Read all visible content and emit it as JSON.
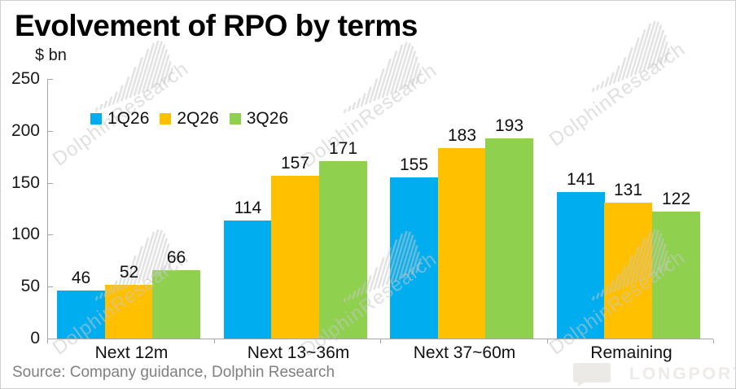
{
  "title": "Evolvement of RPO by terms",
  "unit_label": "$ bn",
  "source_note": "Source:  Company guidance, Dolphin Research",
  "watermark": {
    "text": "DolphinResearch",
    "brand": "LONGPORT"
  },
  "colors": {
    "blue": "#00AEEF",
    "yellow": "#FFC000",
    "green": "#8FD14F",
    "axis": "#A6A6A6",
    "text": "#111111",
    "source_text": "#808080"
  },
  "chart_data": {
    "type": "bar",
    "title": "Evolvement of RPO by terms",
    "ylabel": "$ bn",
    "categories": [
      "Next 12m",
      "Next 13~36m",
      "Next 37~60m",
      "Remaining"
    ],
    "series": [
      {
        "name": "1Q26",
        "color_key": "blue",
        "values": [
          46,
          114,
          155,
          141
        ]
      },
      {
        "name": "2Q26",
        "color_key": "yellow",
        "values": [
          52,
          157,
          183,
          131
        ]
      },
      {
        "name": "3Q26",
        "color_key": "green",
        "values": [
          66,
          171,
          193,
          122
        ]
      }
    ],
    "ylim": [
      0,
      250
    ],
    "yticks": [
      0,
      50,
      100,
      150,
      200,
      250
    ],
    "grid": false,
    "legend_position": "top-left-inside",
    "data_labels": true
  }
}
